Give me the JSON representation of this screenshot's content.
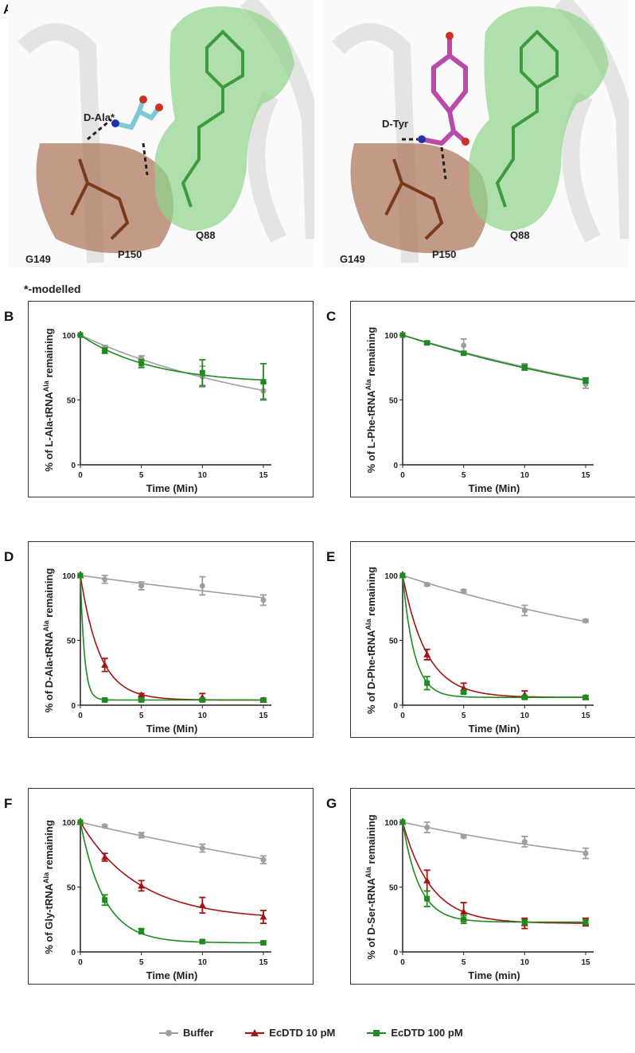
{
  "panel_labels": [
    "A",
    "B",
    "C",
    "D",
    "E",
    "F",
    "G"
  ],
  "structure": {
    "left": {
      "ligand": "D-Ala*",
      "residues": [
        "G149",
        "P150",
        "Q88"
      ]
    },
    "right": {
      "ligand": "D-Tyr",
      "residues": [
        "G149",
        "P150",
        "Q88"
      ]
    },
    "note": "*-modelled",
    "colors": {
      "backbone": "#e6e6e6",
      "g149_surface": "#b07a60",
      "q88_surface": "#8fd48a",
      "d_ala": "#7ec8d6",
      "d_tyr": "#b84aa8"
    }
  },
  "legend": [
    {
      "name": "Buffer",
      "color": "#9e9e9e",
      "marker": "circle"
    },
    {
      "name": "EcDTD 10 pM",
      "color": "#a31515",
      "marker": "triangle"
    },
    {
      "name": "EcDTD 100 pM",
      "color": "#1f8a1f",
      "marker": "square"
    }
  ],
  "chart_data": [
    {
      "panel": "B",
      "type": "line",
      "x": [
        0,
        2,
        5,
        10,
        15
      ],
      "xlabel": "Time (Min)",
      "ylabel_prefix": "% of L-Ala-tRNA",
      "ylabel_sup": "Ala",
      "ylabel_suffix": " remaining",
      "xlim": [
        0,
        15
      ],
      "ylim": [
        0,
        100
      ],
      "xticks": [
        0,
        5,
        10,
        15
      ],
      "yticks": [
        0,
        50,
        100
      ],
      "grid": false,
      "series": [
        {
          "name": "Buffer",
          "values": [
            100,
            90,
            82,
            68,
            57
          ],
          "errors": [
            0,
            2,
            2,
            8,
            6
          ]
        },
        {
          "name": "EcDTD 100 pM",
          "values": [
            100,
            88,
            78,
            71,
            64
          ],
          "errors": [
            0,
            2,
            3,
            10,
            14
          ]
        }
      ]
    },
    {
      "panel": "C",
      "type": "line",
      "x": [
        0,
        2,
        5,
        10,
        15
      ],
      "xlabel": "Time (Min)",
      "ylabel_prefix": "% of L-Phe-tRNA",
      "ylabel_sup": "Ala",
      "ylabel_suffix": " remaining",
      "xlim": [
        0,
        15
      ],
      "ylim": [
        0,
        100
      ],
      "xticks": [
        0,
        5,
        10,
        15
      ],
      "yticks": [
        0,
        50,
        100
      ],
      "grid": false,
      "series": [
        {
          "name": "Buffer",
          "values": [
            100,
            94,
            92,
            76,
            62
          ],
          "errors": [
            0,
            1,
            5,
            2,
            3
          ]
        },
        {
          "name": "EcDTD 100 pM",
          "values": [
            100,
            94,
            86,
            75,
            65
          ],
          "errors": [
            0,
            1,
            1,
            2,
            2
          ]
        }
      ]
    },
    {
      "panel": "D",
      "type": "line",
      "x": [
        0,
        2,
        5,
        10,
        15
      ],
      "xlabel": "Time (Min)",
      "ylabel_prefix": "% of D-Ala-tRNA",
      "ylabel_sup": "Ala",
      "ylabel_suffix": " remaining",
      "xlim": [
        0,
        15
      ],
      "ylim": [
        0,
        100
      ],
      "xticks": [
        0,
        5,
        10,
        15
      ],
      "yticks": [
        0,
        50,
        100
      ],
      "grid": false,
      "series": [
        {
          "name": "Buffer",
          "values": [
            100,
            97,
            92,
            92,
            81
          ],
          "errors": [
            0,
            3,
            3,
            7,
            4
          ]
        },
        {
          "name": "EcDTD 10 pM",
          "values": [
            100,
            31,
            8,
            6,
            4
          ],
          "errors": [
            0,
            5,
            1,
            3,
            1
          ]
        },
        {
          "name": "EcDTD 100 pM",
          "values": [
            100,
            4,
            4,
            4,
            4
          ],
          "errors": [
            0,
            1,
            1,
            1,
            1
          ]
        }
      ]
    },
    {
      "panel": "E",
      "type": "line",
      "x": [
        0,
        2,
        5,
        10,
        15
      ],
      "xlabel": "Time (Min)",
      "ylabel_prefix": "% of D-Phe-tRNA",
      "ylabel_sup": "Ala",
      "ylabel_suffix": " remaining",
      "xlim": [
        0,
        15
      ],
      "ylim": [
        0,
        100
      ],
      "xticks": [
        0,
        5,
        10,
        15
      ],
      "yticks": [
        0,
        50,
        100
      ],
      "grid": false,
      "series": [
        {
          "name": "Buffer",
          "values": [
            100,
            93,
            88,
            73,
            65
          ],
          "errors": [
            0,
            1,
            1,
            4,
            1
          ]
        },
        {
          "name": "EcDTD 10 pM",
          "values": [
            100,
            39,
            13,
            8,
            6
          ],
          "errors": [
            0,
            4,
            4,
            3,
            1
          ]
        },
        {
          "name": "EcDTD 100 pM",
          "values": [
            100,
            17,
            10,
            6,
            6
          ],
          "errors": [
            0,
            5,
            1,
            1,
            1
          ]
        }
      ]
    },
    {
      "panel": "F",
      "type": "line",
      "x": [
        0,
        2,
        5,
        10,
        15
      ],
      "xlabel": "Time (Min)",
      "ylabel_prefix": "% of Gly-tRNA",
      "ylabel_sup": "Ala",
      "ylabel_suffix": " remaining",
      "xlim": [
        0,
        15
      ],
      "ylim": [
        0,
        100
      ],
      "xticks": [
        0,
        5,
        10,
        15
      ],
      "yticks": [
        0,
        50,
        100
      ],
      "grid": false,
      "series": [
        {
          "name": "Buffer",
          "values": [
            100,
            97,
            90,
            80,
            71
          ],
          "errors": [
            0,
            1,
            2,
            3,
            3
          ]
        },
        {
          "name": "EcDTD 10 pM",
          "values": [
            100,
            73,
            51,
            36,
            27
          ],
          "errors": [
            0,
            3,
            4,
            6,
            5
          ]
        },
        {
          "name": "EcDTD 100 pM",
          "values": [
            100,
            40,
            16,
            8,
            7
          ],
          "errors": [
            0,
            4,
            2,
            1,
            1
          ]
        }
      ]
    },
    {
      "panel": "G",
      "type": "line",
      "x": [
        0,
        2,
        5,
        10,
        15
      ],
      "xlabel": "Time (min)",
      "ylabel_prefix": "% of D-Ser-tRNA",
      "ylabel_sup": "Ala",
      "ylabel_suffix": " remaining",
      "xlim": [
        0,
        15
      ],
      "ylim": [
        0,
        100
      ],
      "xticks": [
        0,
        5,
        10,
        15
      ],
      "yticks": [
        0,
        50,
        100
      ],
      "grid": false,
      "series": [
        {
          "name": "Buffer",
          "values": [
            100,
            96,
            89,
            85,
            76
          ],
          "errors": [
            0,
            4,
            1,
            4,
            4
          ]
        },
        {
          "name": "EcDTD 10 pM",
          "values": [
            100,
            55,
            31,
            22,
            23
          ],
          "errors": [
            0,
            8,
            7,
            4,
            3
          ]
        },
        {
          "name": "EcDTD 100 pM",
          "values": [
            100,
            41,
            25,
            23,
            23
          ],
          "errors": [
            0,
            6,
            3,
            2,
            2
          ]
        }
      ]
    }
  ]
}
